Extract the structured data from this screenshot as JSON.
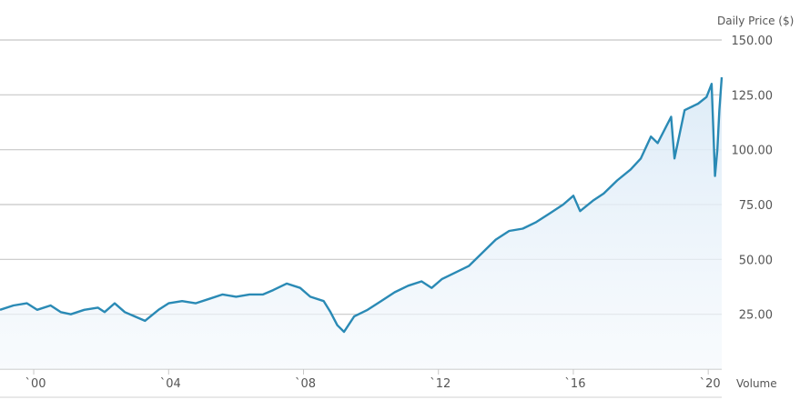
{
  "chart_data": {
    "type": "area",
    "ylabel": "Daily Price ($)",
    "volume_label": "Volume",
    "ylim": [
      0,
      150
    ],
    "y_ticks": [
      "150.00",
      "125.00",
      "100.00",
      "75.00",
      "50.00",
      "25.00"
    ],
    "y_tick_values": [
      150,
      125,
      100,
      75,
      50,
      25
    ],
    "x_ticks": [
      "`00",
      "`04",
      "`08",
      "`12",
      "`16",
      "`20"
    ],
    "x_tick_values": [
      2000,
      2004,
      2008,
      2012,
      2016,
      2020
    ],
    "xlim": [
      1999.0,
      2020.4
    ],
    "grid": true,
    "series": [
      {
        "color": "#2a8ab5",
        "fill_color": "#dbeaf7",
        "points": [
          [
            1999.0,
            27
          ],
          [
            1999.4,
            29
          ],
          [
            1999.8,
            30
          ],
          [
            2000.1,
            27
          ],
          [
            2000.5,
            29
          ],
          [
            2000.8,
            26
          ],
          [
            2001.1,
            25
          ],
          [
            2001.5,
            27
          ],
          [
            2001.9,
            28
          ],
          [
            2002.1,
            26
          ],
          [
            2002.4,
            30
          ],
          [
            2002.7,
            26
          ],
          [
            2003.0,
            24
          ],
          [
            2003.3,
            22
          ],
          [
            2003.7,
            27
          ],
          [
            2004.0,
            30
          ],
          [
            2004.4,
            31
          ],
          [
            2004.8,
            30
          ],
          [
            2005.2,
            32
          ],
          [
            2005.6,
            34
          ],
          [
            2006.0,
            33
          ],
          [
            2006.4,
            34
          ],
          [
            2006.8,
            34
          ],
          [
            2007.1,
            36
          ],
          [
            2007.5,
            39
          ],
          [
            2007.9,
            37
          ],
          [
            2008.2,
            33
          ],
          [
            2008.6,
            31
          ],
          [
            2008.8,
            26
          ],
          [
            2009.0,
            20
          ],
          [
            2009.2,
            17
          ],
          [
            2009.5,
            24
          ],
          [
            2009.9,
            27
          ],
          [
            2010.3,
            31
          ],
          [
            2010.7,
            35
          ],
          [
            2011.1,
            38
          ],
          [
            2011.5,
            40
          ],
          [
            2011.8,
            37
          ],
          [
            2012.1,
            41
          ],
          [
            2012.5,
            44
          ],
          [
            2012.9,
            47
          ],
          [
            2013.3,
            53
          ],
          [
            2013.7,
            59
          ],
          [
            2014.1,
            63
          ],
          [
            2014.5,
            64
          ],
          [
            2014.9,
            67
          ],
          [
            2015.3,
            71
          ],
          [
            2015.7,
            75
          ],
          [
            2016.0,
            79
          ],
          [
            2016.2,
            72
          ],
          [
            2016.6,
            77
          ],
          [
            2016.9,
            80
          ],
          [
            2017.3,
            86
          ],
          [
            2017.7,
            91
          ],
          [
            2018.0,
            96
          ],
          [
            2018.3,
            106
          ],
          [
            2018.5,
            103
          ],
          [
            2018.9,
            115
          ],
          [
            2019.0,
            96
          ],
          [
            2019.3,
            118
          ],
          [
            2019.7,
            121
          ],
          [
            2019.95,
            124
          ],
          [
            2020.1,
            130
          ],
          [
            2020.15,
            110
          ],
          [
            2020.2,
            88
          ],
          [
            2020.27,
            100
          ],
          [
            2020.33,
            118
          ],
          [
            2020.4,
            133
          ]
        ]
      }
    ]
  }
}
